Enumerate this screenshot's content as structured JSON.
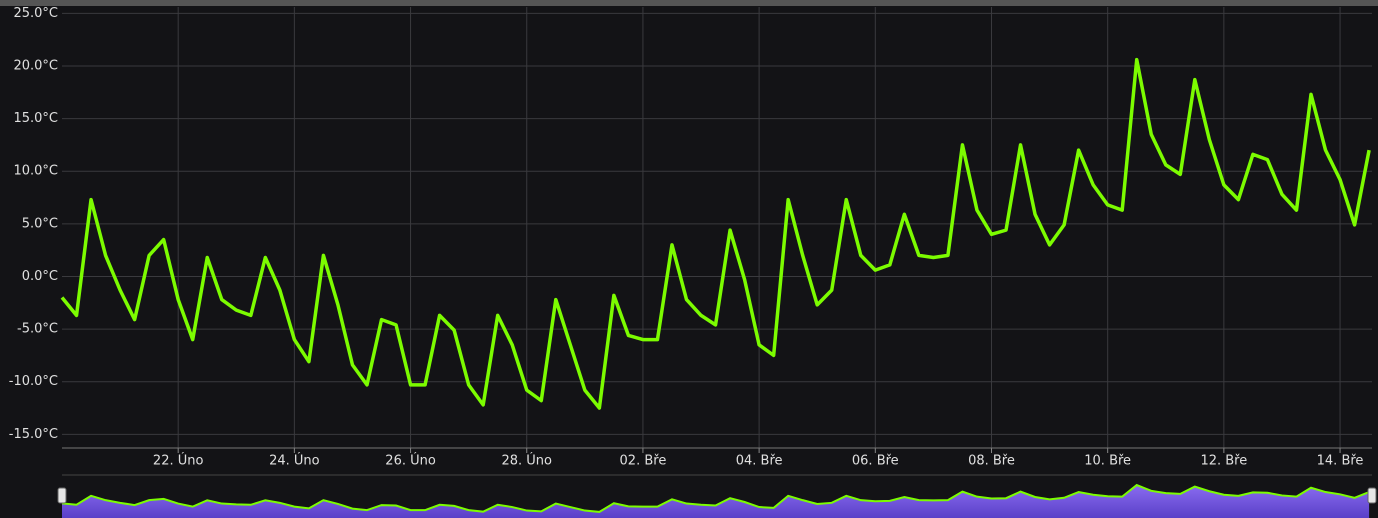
{
  "chart_data": {
    "type": "line",
    "color": "#7cfc00",
    "grid": true,
    "xlim": [
      20,
      42.55
    ],
    "ylim": [
      -16.3,
      25.6
    ],
    "xticks": [
      {
        "value": 22,
        "label": "22. Úno"
      },
      {
        "value": 24,
        "label": "24. Úno"
      },
      {
        "value": 26,
        "label": "26. Úno"
      },
      {
        "value": 28,
        "label": "28. Úno"
      },
      {
        "value": 30,
        "label": "02. Bře"
      },
      {
        "value": 32,
        "label": "04. Bře"
      },
      {
        "value": 34,
        "label": "06. Bře"
      },
      {
        "value": 36,
        "label": "08. Bře"
      },
      {
        "value": 38,
        "label": "10. Bře"
      },
      {
        "value": 40,
        "label": "12. Bře"
      },
      {
        "value": 42,
        "label": "14. Bře"
      }
    ],
    "yticks": [
      {
        "value": -15,
        "label": "-15.0°C"
      },
      {
        "value": -10,
        "label": "-10.0°C"
      },
      {
        "value": -5,
        "label": "-5.0°C"
      },
      {
        "value": 0,
        "label": "0.0°C"
      },
      {
        "value": 5,
        "label": "5.0°C"
      },
      {
        "value": 10,
        "label": "10.0°C"
      },
      {
        "value": 15,
        "label": "15.0°C"
      },
      {
        "value": 20,
        "label": "20.0°C"
      },
      {
        "value": 25,
        "label": "25.0°C"
      }
    ],
    "x": [
      20,
      20.25,
      20.5,
      20.75,
      21,
      21.25,
      21.5,
      21.75,
      22,
      22.25,
      22.5,
      22.75,
      23,
      23.25,
      23.5,
      23.75,
      24,
      24.25,
      24.5,
      24.75,
      25,
      25.25,
      25.5,
      25.75,
      26,
      26.25,
      26.5,
      26.75,
      27,
      27.25,
      27.5,
      27.75,
      28,
      28.25,
      28.5,
      28.75,
      29,
      29.25,
      29.5,
      29.75,
      30,
      30.25,
      30.5,
      30.75,
      31,
      31.25,
      31.5,
      31.75,
      32,
      32.25,
      32.5,
      32.75,
      33,
      33.25,
      33.5,
      33.75,
      34,
      34.25,
      34.5,
      34.75,
      35,
      35.25,
      35.5,
      35.75,
      36,
      36.25,
      36.5,
      36.75,
      37,
      37.25,
      37.5,
      37.75,
      38,
      38.25,
      38.5,
      38.75,
      39,
      39.25,
      39.5,
      39.75,
      40,
      40.25,
      40.5,
      40.75,
      41,
      41.25,
      41.5,
      41.75,
      42,
      42.25,
      42.5
    ],
    "values": [
      -2.0,
      -3.7,
      7.3,
      2.0,
      -1.3,
      -4.1,
      2.0,
      3.5,
      -2.2,
      -6.0,
      1.8,
      -2.2,
      -3.2,
      -3.7,
      1.8,
      -1.3,
      -6.0,
      -8.1,
      2.0,
      -2.7,
      -8.4,
      -10.3,
      -4.1,
      -4.6,
      -10.3,
      -10.3,
      -3.7,
      -5.1,
      -10.3,
      -12.2,
      -3.7,
      -6.5,
      -10.8,
      -11.8,
      -2.2,
      -6.5,
      -10.8,
      -12.5,
      -1.8,
      -5.6,
      -6.0,
      -6.0,
      3.0,
      -2.2,
      -3.7,
      -4.6,
      4.4,
      -0.3,
      -6.5,
      -7.5,
      7.3,
      2.0,
      -2.7,
      -1.3,
      7.3,
      2.0,
      0.6,
      1.1,
      5.9,
      2.0,
      1.8,
      2.0,
      12.5,
      6.3,
      4.0,
      4.4,
      12.5,
      5.9,
      3.0,
      4.9,
      12.0,
      8.7,
      6.8,
      6.3,
      20.6,
      13.5,
      10.6,
      9.7,
      18.7,
      13.0,
      8.7,
      7.3,
      11.6,
      11.1,
      7.8,
      6.3,
      17.3,
      12.0,
      9.2,
      4.9,
      12.0
    ]
  }
}
